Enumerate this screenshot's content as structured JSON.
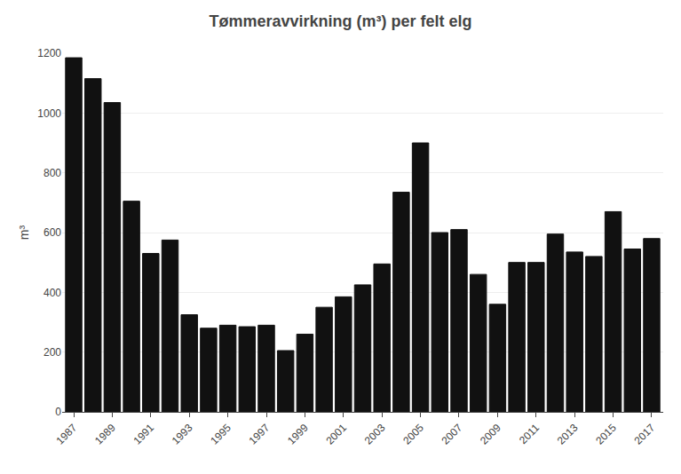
{
  "chart_data": {
    "type": "bar",
    "title": "Tømmeravvirkning (m³) per felt elg",
    "ylabel": "m³",
    "x": [
      1987,
      1988,
      1989,
      1990,
      1991,
      1992,
      1993,
      1994,
      1995,
      1996,
      1997,
      1998,
      1999,
      2000,
      2001,
      2002,
      2003,
      2004,
      2005,
      2006,
      2007,
      2008,
      2009,
      2010,
      2011,
      2012,
      2013,
      2014,
      2015,
      2016,
      2017
    ],
    "values": [
      1185,
      1115,
      1035,
      705,
      530,
      575,
      325,
      280,
      290,
      285,
      290,
      205,
      260,
      350,
      385,
      425,
      495,
      735,
      900,
      600,
      610,
      460,
      360,
      500,
      500,
      595,
      535,
      520,
      670,
      545,
      580
    ],
    "color": "#111111",
    "xlim": [
      1986.4,
      2017.6
    ],
    "xticks": [
      1987,
      1989,
      1991,
      1993,
      1995,
      1997,
      1999,
      2001,
      2003,
      2005,
      2007,
      2009,
      2011,
      2013,
      2015,
      2017
    ],
    "ylim": [
      0,
      1200
    ],
    "yticks": [
      0,
      200,
      400,
      600,
      800,
      1000,
      1200
    ],
    "grid": true
  }
}
